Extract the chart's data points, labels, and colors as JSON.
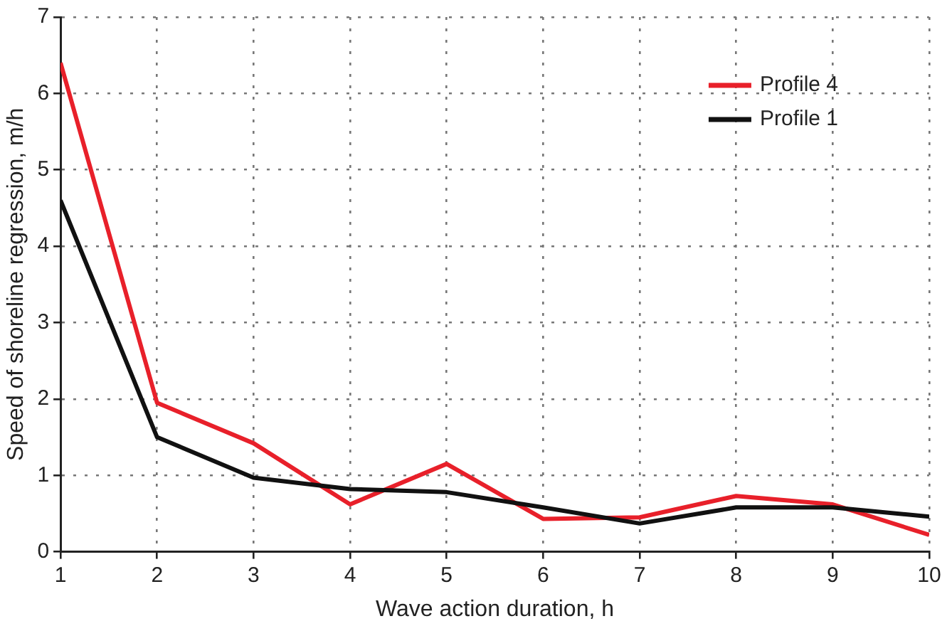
{
  "chart_data": {
    "type": "line",
    "xlabel": "Wave action duration, h",
    "ylabel": "Speed of shoreline regression, m/h",
    "x": [
      1,
      2,
      3,
      4,
      5,
      6,
      7,
      8,
      9,
      10
    ],
    "series": [
      {
        "name": "Profile 4",
        "color": "#e8202a",
        "values": [
          6.4,
          1.95,
          1.42,
          0.62,
          1.15,
          0.43,
          0.45,
          0.73,
          0.62,
          0.22
        ]
      },
      {
        "name": "Profile 1",
        "color": "#111111",
        "values": [
          4.6,
          1.5,
          0.97,
          0.82,
          0.78,
          0.58,
          0.37,
          0.58,
          0.58,
          0.46
        ]
      }
    ],
    "xlim": [
      1,
      10
    ],
    "xticks": [
      1,
      2,
      3,
      4,
      5,
      6,
      7,
      8,
      9,
      10
    ],
    "ylim": [
      0,
      7
    ],
    "yticks": [
      0,
      1,
      2,
      3,
      4,
      5,
      6,
      7
    ],
    "grid": true,
    "legend": "top right",
    "marker": "none",
    "line_style": "solid"
  }
}
